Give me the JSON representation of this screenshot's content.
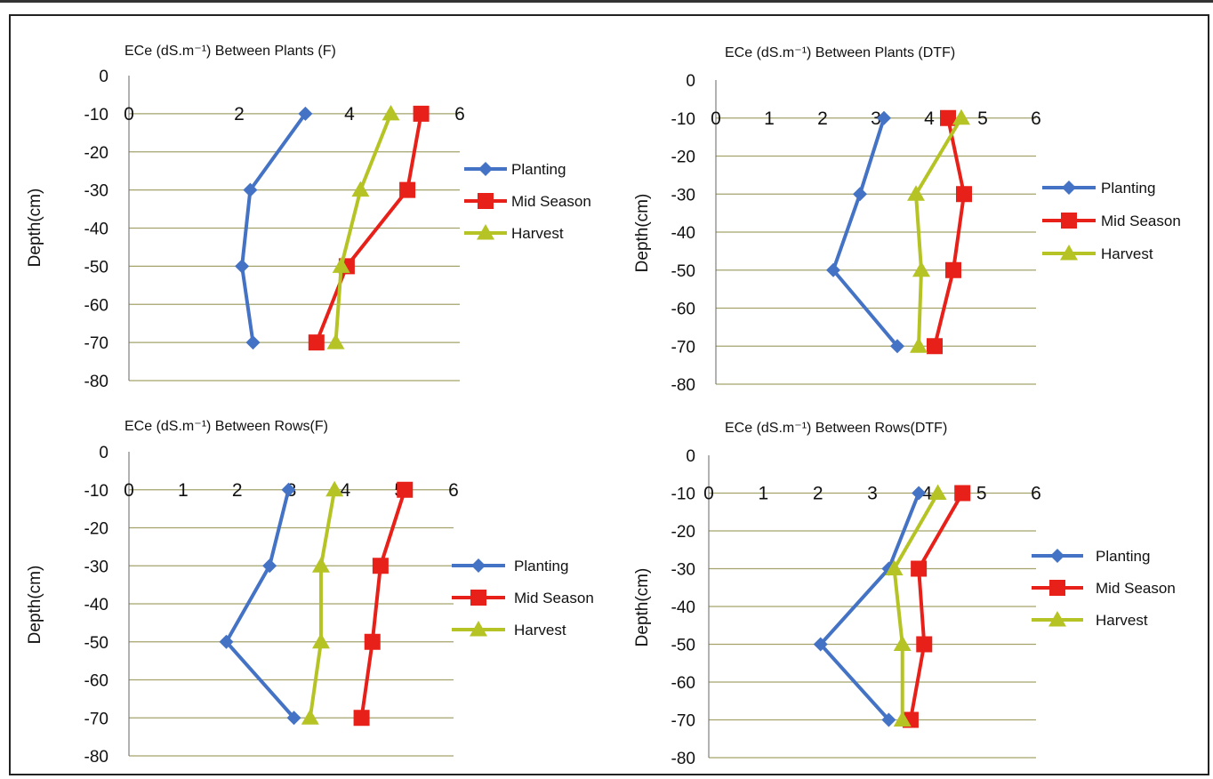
{
  "colors": {
    "Planting": "#4472C4",
    "Mid Season": "#E8201A",
    "Harvest": "#B5C424",
    "gridline": "#A3A36B"
  },
  "chart_data": [
    {
      "type": "line",
      "title": "ECe (dS.m⁻¹) Between Plants (F)",
      "ylabel": "Depth(cm)",
      "xlabel": "",
      "xlim": [
        0,
        6
      ],
      "ylim": [
        -80,
        0
      ],
      "x_ticks": [
        "0",
        "2",
        "4",
        "6"
      ],
      "y_ticks": [
        "0",
        "-10",
        "-20",
        "-30",
        "-40",
        "-50",
        "-60",
        "-70",
        "-80"
      ],
      "grid": true,
      "legend": "right",
      "series": [
        {
          "name": "Planting",
          "marker": "diamond",
          "points": [
            {
              "x": 3.2,
              "y": -10
            },
            {
              "x": 2.2,
              "y": -30
            },
            {
              "x": 2.05,
              "y": -50
            },
            {
              "x": 2.25,
              "y": -70
            }
          ]
        },
        {
          "name": "Mid Season",
          "marker": "square",
          "points": [
            {
              "x": 5.3,
              "y": -10
            },
            {
              "x": 5.05,
              "y": -30
            },
            {
              "x": 3.95,
              "y": -50
            },
            {
              "x": 3.4,
              "y": -70
            }
          ]
        },
        {
          "name": "Harvest",
          "marker": "triangle",
          "points": [
            {
              "x": 4.75,
              "y": -10
            },
            {
              "x": 4.2,
              "y": -30
            },
            {
              "x": 3.85,
              "y": -50
            },
            {
              "x": 3.75,
              "y": -70
            }
          ]
        }
      ]
    },
    {
      "type": "line",
      "title": "ECe (dS.m⁻¹) Between Plants (DTF)",
      "ylabel": "Depth(cm)",
      "xlabel": "",
      "xlim": [
        0,
        6
      ],
      "ylim": [
        -80,
        0
      ],
      "x_ticks": [
        "0",
        "1",
        "2",
        "3",
        "4",
        "5",
        "6"
      ],
      "y_ticks": [
        "0",
        "-10",
        "-20",
        "-30",
        "-40",
        "-50",
        "-60",
        "-70",
        "-80"
      ],
      "grid": true,
      "legend": "right",
      "series": [
        {
          "name": "Planting",
          "marker": "diamond",
          "points": [
            {
              "x": 3.15,
              "y": -10
            },
            {
              "x": 2.7,
              "y": -30
            },
            {
              "x": 2.2,
              "y": -50
            },
            {
              "x": 3.4,
              "y": -70
            }
          ]
        },
        {
          "name": "Mid Season",
          "marker": "square",
          "points": [
            {
              "x": 4.35,
              "y": -10
            },
            {
              "x": 4.65,
              "y": -30
            },
            {
              "x": 4.45,
              "y": -50
            },
            {
              "x": 4.1,
              "y": -70
            }
          ]
        },
        {
          "name": "Harvest",
          "marker": "triangle",
          "points": [
            {
              "x": 4.6,
              "y": -10
            },
            {
              "x": 3.75,
              "y": -30
            },
            {
              "x": 3.85,
              "y": -50
            },
            {
              "x": 3.8,
              "y": -70
            }
          ]
        }
      ]
    },
    {
      "type": "line",
      "title": "ECe (dS.m⁻¹) Between Rows(F)",
      "ylabel": "Depth(cm)",
      "xlabel": "",
      "xlim": [
        0,
        6
      ],
      "ylim": [
        -80,
        0
      ],
      "x_ticks": [
        "0",
        "1",
        "2",
        "3",
        "4",
        "5",
        "6"
      ],
      "y_ticks": [
        "0",
        "-10",
        "-20",
        "-30",
        "-40",
        "-50",
        "-60",
        "-70",
        "-80"
      ],
      "grid": true,
      "legend": "right",
      "series": [
        {
          "name": "Planting",
          "marker": "diamond",
          "points": [
            {
              "x": 2.95,
              "y": -10
            },
            {
              "x": 2.6,
              "y": -30
            },
            {
              "x": 1.8,
              "y": -50
            },
            {
              "x": 3.05,
              "y": -70
            }
          ]
        },
        {
          "name": "Mid Season",
          "marker": "square",
          "points": [
            {
              "x": 5.1,
              "y": -10
            },
            {
              "x": 4.65,
              "y": -30
            },
            {
              "x": 4.5,
              "y": -50
            },
            {
              "x": 4.3,
              "y": -70
            }
          ]
        },
        {
          "name": "Harvest",
          "marker": "triangle",
          "points": [
            {
              "x": 3.8,
              "y": -10
            },
            {
              "x": 3.55,
              "y": -30
            },
            {
              "x": 3.55,
              "y": -50
            },
            {
              "x": 3.35,
              "y": -70
            }
          ]
        }
      ]
    },
    {
      "type": "line",
      "title": "ECe (dS.m⁻¹) Between Rows(DTF)",
      "ylabel": "Depth(cm)",
      "xlabel": "",
      "xlim": [
        0,
        6
      ],
      "ylim": [
        -80,
        0
      ],
      "x_ticks": [
        "0",
        "1",
        "2",
        "3",
        "4",
        "5",
        "6"
      ],
      "y_ticks": [
        "0",
        "-10",
        "-20",
        "-30",
        "-40",
        "-50",
        "-60",
        "-70",
        "-80"
      ],
      "grid": true,
      "legend": "right",
      "series": [
        {
          "name": "Planting",
          "marker": "diamond",
          "points": [
            {
              "x": 3.85,
              "y": -10
            },
            {
              "x": 3.3,
              "y": -30
            },
            {
              "x": 2.05,
              "y": -50
            },
            {
              "x": 3.3,
              "y": -70
            }
          ]
        },
        {
          "name": "Mid Season",
          "marker": "square",
          "points": [
            {
              "x": 4.65,
              "y": -10
            },
            {
              "x": 3.85,
              "y": -30
            },
            {
              "x": 3.95,
              "y": -50
            },
            {
              "x": 3.7,
              "y": -70
            }
          ]
        },
        {
          "name": "Harvest",
          "marker": "triangle",
          "points": [
            {
              "x": 4.2,
              "y": -10
            },
            {
              "x": 3.4,
              "y": -30
            },
            {
              "x": 3.55,
              "y": -50
            },
            {
              "x": 3.55,
              "y": -70
            }
          ]
        }
      ]
    }
  ]
}
